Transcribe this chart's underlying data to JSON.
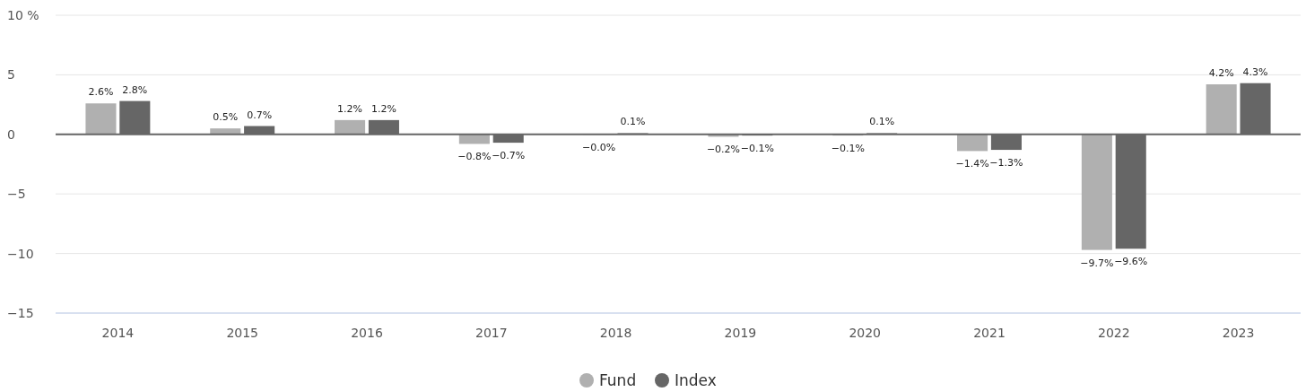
{
  "chart_data": {
    "type": "bar",
    "categories": [
      "2014",
      "2015",
      "2016",
      "2017",
      "2018",
      "2019",
      "2020",
      "2021",
      "2022",
      "2023"
    ],
    "series": [
      {
        "name": "Fund",
        "color": "#b0b0b0",
        "values": [
          2.6,
          0.5,
          1.2,
          -0.8,
          -0.03,
          -0.2,
          -0.1,
          -1.4,
          -9.7,
          4.2
        ],
        "value_labels": [
          "2.6%",
          "0.5%",
          "1.2%",
          "−0.8%",
          "−0.0%",
          "−0.2%",
          "−0.1%",
          "−1.4%",
          "−9.7%",
          "4.2%"
        ]
      },
      {
        "name": "Index",
        "color": "#666666",
        "values": [
          2.8,
          0.7,
          1.2,
          -0.7,
          0.1,
          -0.1,
          0.1,
          -1.3,
          -9.6,
          4.3
        ],
        "value_labels": [
          "2.8%",
          "0.7%",
          "1.2%",
          "−0.7%",
          "0.1%",
          "−0.1%",
          "0.1%",
          "−1.3%",
          "−9.6%",
          "4.3%"
        ]
      }
    ],
    "ylim": [
      -15,
      10
    ],
    "yticks": [
      {
        "value": 10,
        "label": "10 %"
      },
      5,
      0,
      {
        "value": -5,
        "label": "−5"
      },
      {
        "value": -10,
        "label": "−10"
      },
      {
        "value": -15,
        "label": "−15"
      }
    ],
    "grid": "y",
    "legend": "bottom",
    "marker": "circle"
  }
}
